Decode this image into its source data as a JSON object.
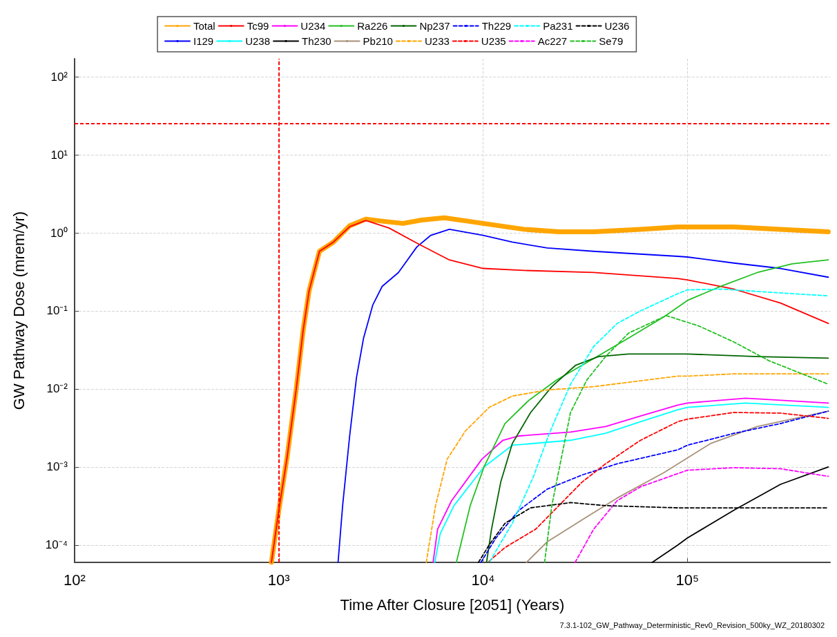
{
  "chart_data": {
    "type": "line",
    "xlabel": "Time After Closure [2051] (Years)",
    "ylabel": "GW Pathway Dose (mrem/yr)",
    "log": "xy",
    "grid": true,
    "legend": "top",
    "xlim": [
      100,
      500000
    ],
    "ylim": [
      6e-05,
      170
    ],
    "xticks": [
      {
        "value": 100,
        "label": "10²"
      },
      {
        "value": 1000,
        "label": "10³"
      },
      {
        "value": 10000,
        "label": "10⁴"
      },
      {
        "value": 100000,
        "label": "10⁵"
      }
    ],
    "yticks": [
      {
        "value": 0.0001,
        "label": "10⁻⁴"
      },
      {
        "value": 0.001,
        "label": "10⁻³"
      },
      {
        "value": 0.01,
        "label": "10⁻²"
      },
      {
        "value": 0.1,
        "label": "10⁻¹"
      },
      {
        "value": 1,
        "label": "10⁰"
      },
      {
        "value": 10,
        "label": "10¹"
      },
      {
        "value": 100,
        "label": "10²"
      }
    ],
    "ref_lines": [
      {
        "axis": "y",
        "value": 25,
        "label": null,
        "color": "#ff0000",
        "line_style": "dashed"
      },
      {
        "axis": "x",
        "value": 1000,
        "label": null,
        "color": "#ff0000",
        "line_style": "dashed"
      }
    ],
    "annotations": [
      "7.3.1-102_GW_Pathway_Deterministic_Rev0_Revision_500ky_WZ_20180302"
    ],
    "series": [
      {
        "name": "Total",
        "color": "#ffa500",
        "line_style": "solid",
        "x": [
          920,
          1000,
          1096,
          1217,
          1315,
          1406,
          1581,
          1849,
          2222,
          2667,
          3206,
          4055,
          5000,
          6460,
          8430,
          10000,
          15850,
          23500,
          34800,
          59000,
          89700,
          100000,
          169000,
          286000,
          490000
        ],
        "values": [
          6e-05,
          0.00028,
          0.0013,
          0.01,
          0.056,
          0.18,
          0.58,
          0.76,
          1.23,
          1.5,
          1.41,
          1.32,
          1.46,
          1.56,
          1.41,
          1.32,
          1.11,
          1.03,
          1.03,
          1.11,
          1.19,
          1.19,
          1.19,
          1.11,
          1.03
        ]
      },
      {
        "name": "I129",
        "color": "#0000ff",
        "line_style": "solid",
        "x": [
          1950,
          2053,
          2222,
          2400,
          2600,
          2884,
          3206,
          3850,
          4740,
          5550,
          6840,
          10000,
          13900,
          20600,
          34800,
          89700,
          100000,
          169000,
          286000,
          490000
        ],
        "values": [
          6e-05,
          0.00032,
          0.0025,
          0.014,
          0.045,
          0.119,
          0.206,
          0.31,
          0.66,
          0.93,
          1.11,
          0.93,
          0.76,
          0.64,
          0.58,
          0.5,
          0.49,
          0.41,
          0.35,
          0.27
        ]
      },
      {
        "name": "Tc99",
        "color": "#ff0000",
        "line_style": "solid",
        "x": [
          920,
          1000,
          1096,
          1217,
          1315,
          1406,
          1581,
          1849,
          2222,
          2667,
          3470,
          4870,
          6840,
          10000,
          15850,
          34800,
          89700,
          100000,
          169000,
          286000,
          490000
        ],
        "values": [
          6e-05,
          0.00028,
          0.0013,
          0.01,
          0.056,
          0.18,
          0.58,
          0.76,
          1.2,
          1.44,
          1.15,
          0.71,
          0.45,
          0.35,
          0.33,
          0.31,
          0.26,
          0.25,
          0.19,
          0.126,
          0.069
        ]
      },
      {
        "name": "U238",
        "color": "#00ffff",
        "line_style": "solid",
        "x": [
          5800,
          6170,
          7200,
          10100,
          13900,
          26800,
          39800,
          59000,
          89700,
          100000,
          193000,
          490000
        ],
        "values": [
          6e-05,
          0.00014,
          0.00032,
          0.001,
          0.0019,
          0.0022,
          0.0027,
          0.0038,
          0.0054,
          0.0058,
          0.0066,
          0.0058
        ]
      },
      {
        "name": "U234",
        "color": "#ff00ff",
        "line_style": "solid",
        "x": [
          5690,
          5990,
          7010,
          9870,
          12500,
          15000,
          26800,
          39800,
          59000,
          89700,
          100000,
          193000,
          490000
        ],
        "values": [
          6e-05,
          0.00016,
          0.00037,
          0.00126,
          0.0022,
          0.0025,
          0.0028,
          0.0033,
          0.0045,
          0.0062,
          0.0066,
          0.0076,
          0.0066
        ]
      },
      {
        "name": "Th230",
        "color": "#000000",
        "line_style": "solid",
        "x": [
          67300,
          89700,
          100000,
          169000,
          286000,
          490000
        ],
        "values": [
          6e-05,
          0.0001,
          0.000123,
          0.00028,
          0.0006,
          0.001
        ]
      },
      {
        "name": "Ra226",
        "color": "#22c022",
        "line_style": "solid",
        "x": [
          7400,
          8650,
          10100,
          12800,
          16700,
          22900,
          34800,
          51600,
          76900,
          100000,
          148000,
          220000,
          326000,
          490000
        ],
        "values": [
          6e-05,
          0.00032,
          0.001,
          0.0036,
          0.0071,
          0.013,
          0.0245,
          0.045,
          0.084,
          0.136,
          0.21,
          0.31,
          0.4,
          0.45
        ]
      },
      {
        "name": "Pb210",
        "color": "#a89078",
        "line_style": "solid",
        "x": [
          16300,
          20600,
          30500,
          45300,
          76900,
          130000,
          220000,
          490000
        ],
        "values": [
          6e-05,
          0.00011,
          0.00021,
          0.0004,
          0.00085,
          0.002,
          0.0033,
          0.0052
        ]
      },
      {
        "name": "Np237",
        "color": "#006400",
        "line_style": "solid",
        "x": [
          10400,
          11000,
          12200,
          13900,
          17100,
          21700,
          28300,
          36700,
          51600,
          89700,
          100000,
          220000,
          490000
        ],
        "values": [
          6e-05,
          0.00016,
          0.00064,
          0.002,
          0.005,
          0.0107,
          0.02,
          0.026,
          0.028,
          0.028,
          0.028,
          0.026,
          0.0248
        ]
      },
      {
        "name": "U233",
        "color": "#ffa500",
        "line_style": "dashed",
        "x": [
          5270,
          5850,
          6670,
          8200,
          10700,
          13900,
          20600,
          34800,
          89700,
          100000,
          169000,
          490000
        ],
        "values": [
          6e-05,
          0.00032,
          0.00126,
          0.0029,
          0.0058,
          0.0081,
          0.0097,
          0.0107,
          0.0146,
          0.0146,
          0.0156,
          0.0156
        ]
      },
      {
        "name": "Th229",
        "color": "#0000ff",
        "line_style": "dashed",
        "x": [
          9750,
          11550,
          15000,
          20600,
          30500,
          45300,
          89700,
          100000,
          169000,
          286000,
          490000
        ],
        "values": [
          6e-05,
          0.000123,
          0.00028,
          0.00052,
          0.00079,
          0.0011,
          0.00166,
          0.0019,
          0.0027,
          0.0036,
          0.0052
        ]
      },
      {
        "name": "U235",
        "color": "#ff0000",
        "line_style": "dashed",
        "x": [
          10700,
          12800,
          18100,
          23500,
          30500,
          39800,
          59000,
          89700,
          100000,
          169000,
          286000,
          490000
        ],
        "values": [
          6.2e-05,
          9.3e-05,
          0.00016,
          0.00032,
          0.00064,
          0.0011,
          0.0022,
          0.0038,
          0.0041,
          0.005,
          0.0049,
          0.0042
        ]
      },
      {
        "name": "Pa231",
        "color": "#00ffff",
        "line_style": "dashed",
        "x": [
          10800,
          13900,
          17600,
          21100,
          26800,
          34800,
          45300,
          59000,
          89700,
          100000,
          148000,
          286000,
          490000
        ],
        "values": [
          6.2e-05,
          0.00019,
          0.00074,
          0.0027,
          0.0115,
          0.035,
          0.069,
          0.1,
          0.166,
          0.186,
          0.19,
          0.17,
          0.156
        ]
      },
      {
        "name": "Ac227",
        "color": "#ff00ff",
        "line_style": "dashed",
        "x": [
          28200,
          34800,
          45300,
          59200,
          100000,
          169000,
          286000,
          490000
        ],
        "values": [
          6e-05,
          0.00016,
          0.00037,
          0.00056,
          0.00091,
          0.00098,
          0.00095,
          0.00076
        ]
      },
      {
        "name": "U236",
        "color": "#000000",
        "line_style": "dashed",
        "x": [
          9490,
          10700,
          12800,
          17100,
          26800,
          39800,
          89700,
          490000
        ],
        "values": [
          6e-05,
          0.0001,
          0.00019,
          0.0003,
          0.00035,
          0.00032,
          0.0003,
          0.0003
        ]
      },
      {
        "name": "Se79",
        "color": "#22c022",
        "line_style": "dashed",
        "x": [
          20000,
          21700,
          24100,
          26800,
          32200,
          39800,
          51600,
          78900,
          114000,
          169000,
          251000,
          490000
        ],
        "values": [
          6e-05,
          0.00032,
          0.00126,
          0.005,
          0.013,
          0.026,
          0.052,
          0.087,
          0.064,
          0.04,
          0.023,
          0.0115
        ]
      }
    ]
  }
}
